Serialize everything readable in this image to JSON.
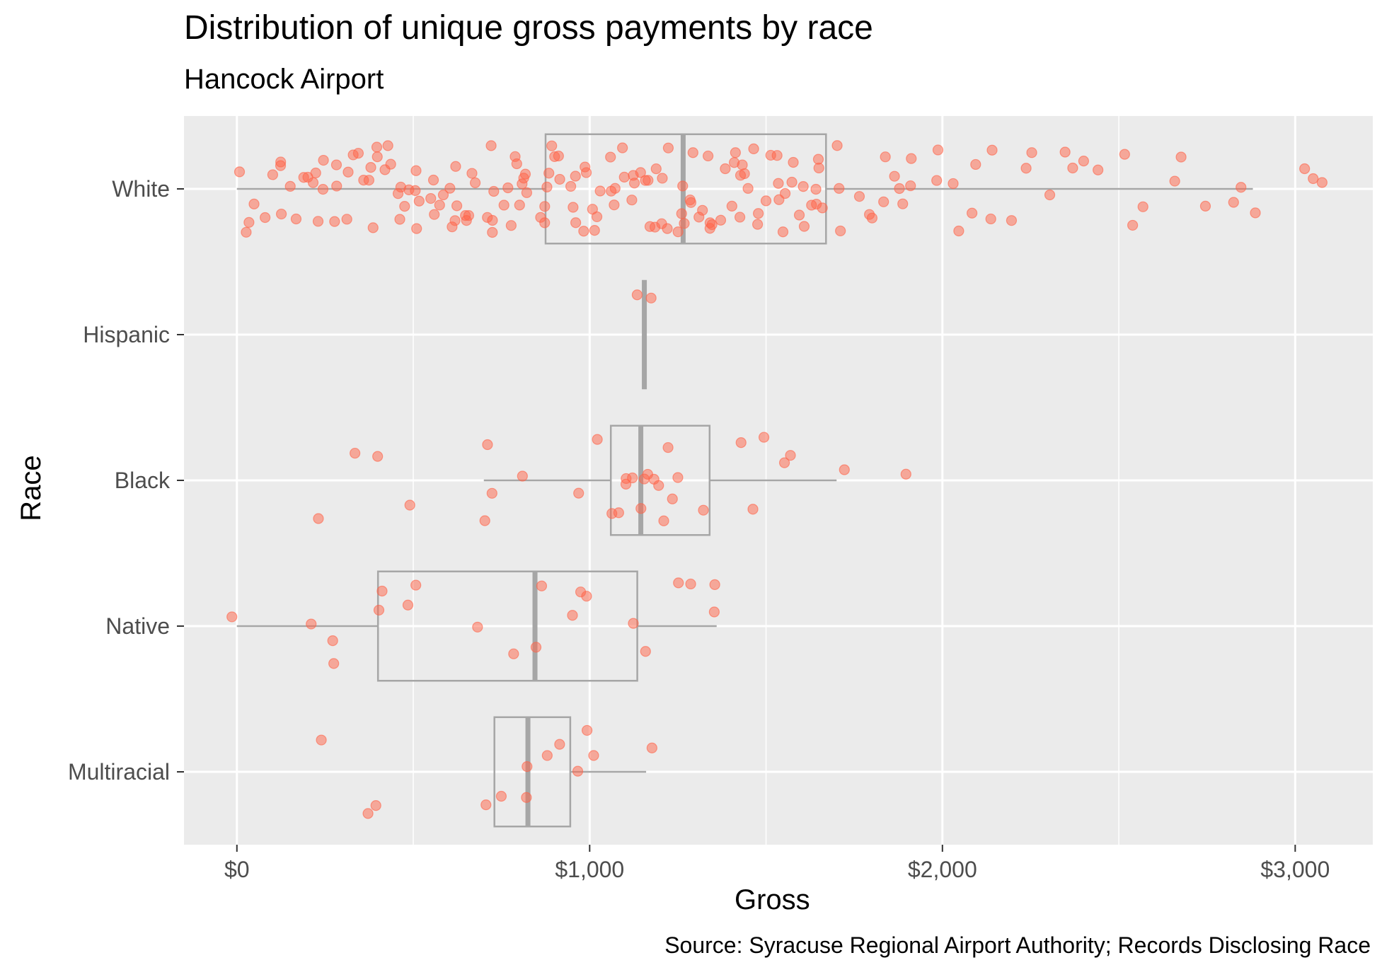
{
  "chart_data": {
    "type": "boxplot",
    "title": "Distribution of unique gross payments by race",
    "subtitle": "Hancock Airport",
    "xlabel": "Gross",
    "ylabel": "Race",
    "caption": "Source: Syracuse Regional Airport Authority; Records Disclosing Race",
    "xlim": [
      -150,
      3220
    ],
    "x_ticks": [
      0,
      1000,
      2000,
      3000
    ],
    "x_tick_labels": [
      "$0",
      "$1,000",
      "$2,000",
      "$3,000"
    ],
    "categories": [
      "White",
      "Hispanic",
      "Black",
      "Native",
      "Multiracial"
    ],
    "grid": true,
    "colors": {
      "points": "#ff6347",
      "box": "#a6a6a6",
      "panel": "#ebebeb",
      "grid": "#ffffff"
    },
    "boxes": [
      {
        "category": "White",
        "min": 0,
        "q1": 875,
        "median": 1265,
        "q3": 1670,
        "max": 2880
      },
      {
        "category": "Hispanic",
        "min": 1155,
        "q1": 1155,
        "median": 1155,
        "q3": 1155,
        "max": 1155
      },
      {
        "category": "Black",
        "min": 700,
        "q1": 1060,
        "median": 1145,
        "q3": 1340,
        "max": 1700
      },
      {
        "category": "Native",
        "min": 0,
        "q1": 400,
        "median": 845,
        "q3": 1135,
        "max": 1360
      },
      {
        "category": "Multiracial",
        "min": 730,
        "q1": 730,
        "median": 825,
        "q3": 945,
        "max": 1160
      }
    ],
    "points": [
      {
        "category": "White",
        "values": [
          0,
          20,
          40,
          50,
          70,
          90,
          110,
          120,
          140,
          150,
          170,
          190,
          200,
          210,
          220,
          230,
          240,
          250,
          260,
          270,
          280,
          300,
          310,
          320,
          340,
          350,
          370,
          380,
          390,
          400,
          410,
          420,
          430,
          440,
          450,
          460,
          470,
          480,
          490,
          500,
          510,
          520,
          530,
          540,
          550,
          560,
          570,
          580,
          600,
          610,
          620,
          630,
          640,
          650,
          660,
          670,
          680,
          690,
          700,
          710,
          720,
          730,
          740,
          750,
          760,
          770,
          780,
          790,
          800,
          810,
          820,
          830,
          840,
          850,
          860,
          870,
          880,
          890,
          900,
          910,
          920,
          930,
          940,
          950,
          960,
          970,
          980,
          990,
          1000,
          1010,
          1020,
          1030,
          1040,
          1050,
          1060,
          1070,
          1080,
          1090,
          1100,
          1110,
          1120,
          1130,
          1140,
          1150,
          1160,
          1170,
          1180,
          1190,
          1200,
          1210,
          1220,
          1230,
          1240,
          1250,
          1260,
          1270,
          1280,
          1290,
          1300,
          1310,
          1320,
          1330,
          1340,
          1350,
          1360,
          1370,
          1380,
          1390,
          1400,
          1410,
          1420,
          1430,
          1440,
          1450,
          1460,
          1470,
          1480,
          1490,
          1500,
          1510,
          1520,
          1530,
          1540,
          1550,
          1560,
          1570,
          1580,
          1590,
          1600,
          1610,
          1620,
          1630,
          1640,
          1650,
          1660,
          1670,
          1690,
          1710,
          1730,
          1750,
          1770,
          1790,
          1810,
          1830,
          1850,
          1870,
          1890,
          1910,
          1930,
          1960,
          1990,
          2010,
          2040,
          2070,
          2100,
          2130,
          2160,
          2200,
          2230,
          2270,
          2300,
          2340,
          2380,
          2420,
          2460,
          2500,
          2540,
          2590,
          2650,
          2700,
          2760,
          2810,
          2860,
          2900,
          3050,
          3060,
          3080
        ]
      },
      {
        "category": "Hispanic",
        "values": [
          1155,
          1155
        ]
      },
      {
        "category": "Black",
        "values": [
          230,
          320,
          420,
          470,
          710,
          720,
          730,
          810,
          970,
          1020,
          1060,
          1070,
          1110,
          1120,
          1130,
          1140,
          1150,
          1160,
          1170,
          1180,
          1190,
          1200,
          1230,
          1260,
          1340,
          1440,
          1480,
          1510,
          1540,
          1550,
          1700,
          1910
        ]
      },
      {
        "category": "Native",
        "values": [
          0,
          200,
          260,
          265,
          390,
          400,
          480,
          510,
          660,
          770,
          850,
          860,
          970,
          975,
          980,
          1130,
          1155,
          1250,
          1270,
          1350,
          1360
        ]
      },
      {
        "category": "Multiracial",
        "values": [
          260,
          380,
          390,
          710,
          770,
          825,
          830,
          860,
          910,
          960,
          990,
          1020,
          1160
        ]
      }
    ]
  }
}
